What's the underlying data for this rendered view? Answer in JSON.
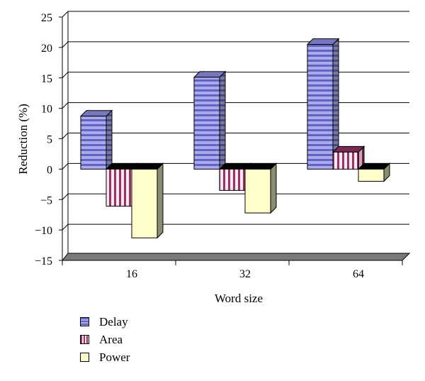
{
  "chart_data": {
    "type": "bar",
    "categories": [
      "16",
      "32",
      "64"
    ],
    "series": [
      {
        "name": "Delay",
        "values": [
          8.7,
          15.1,
          20.5
        ],
        "color": "#aaaaee",
        "stripe": "#5555bb",
        "pattern": "horizontal-stripes"
      },
      {
        "name": "Area",
        "values": [
          -6.1,
          -3.5,
          2.8
        ],
        "color": "#f6e6ee",
        "stripe": "#993366",
        "pattern": "vertical-stripes"
      },
      {
        "name": "Power",
        "values": [
          -11.3,
          -7.2,
          -2.0
        ],
        "color": "#ffffcc",
        "stripe": "#808060",
        "pattern": "solid"
      }
    ],
    "xlabel": "Word size",
    "ylabel": "Reduction (%)",
    "ylim": [
      -15,
      25
    ],
    "yticks": [
      "25",
      "20",
      "15",
      "10",
      "5",
      "0",
      "−5",
      "−10",
      "−15"
    ],
    "grid": true,
    "legend_position": "bottom-left",
    "style": "3d-clustered-columns"
  }
}
